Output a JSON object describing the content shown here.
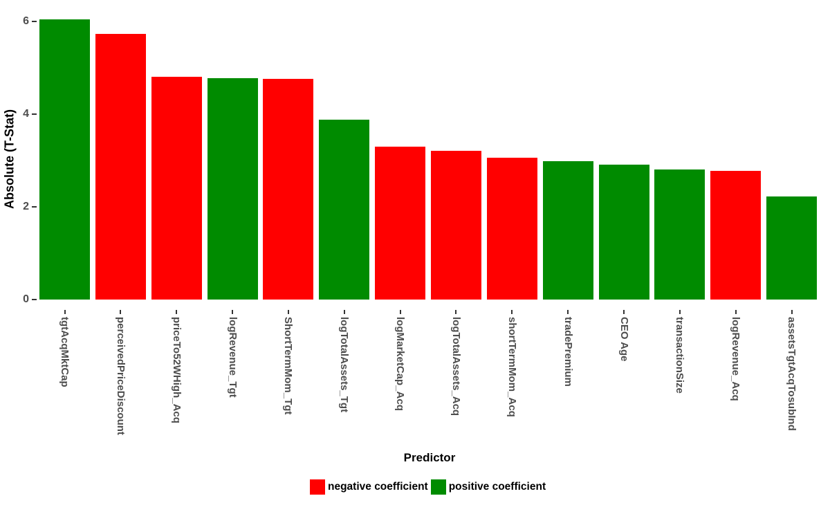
{
  "chart_data": {
    "type": "bar",
    "title": "",
    "xlabel": "Predictor",
    "ylabel": "Absolute (T-Stat)",
    "ylim": [
      0,
      6.4
    ],
    "yticks": [
      0,
      2,
      4,
      6
    ],
    "grid": false,
    "legend_position": "bottom",
    "categories": [
      "tgtAcqMktCap",
      "perceivedPriceDiscount",
      "priceTo52WHigh_Acq",
      "logRevenue_Tgt",
      "ShortTermMom_Tgt",
      "logTotalAssets_Tgt",
      "logMarketCap_Acq",
      "logTotalAssets_Acq",
      "shortTermMom_Acq",
      "tradePremium",
      "CEO Age",
      "transactionSize",
      "logRevenue_Acq",
      "assetsTgtAcqTosubInd"
    ],
    "values": [
      6.05,
      5.73,
      4.81,
      4.78,
      4.76,
      3.88,
      3.3,
      3.21,
      3.06,
      2.98,
      2.91,
      2.81,
      2.77,
      2.23
    ],
    "coefficient_sign": [
      "positive",
      "negative",
      "negative",
      "positive",
      "negative",
      "positive",
      "negative",
      "negative",
      "negative",
      "positive",
      "positive",
      "positive",
      "negative",
      "positive"
    ],
    "colors": {
      "negative": "#FF0000",
      "positive": "#008B00",
      "axis_text": "#4D4D4D",
      "tick_mark": "#333333",
      "title_text": "#000000"
    },
    "legend": [
      {
        "label": "negative coefficient",
        "color": "#FF0000"
      },
      {
        "label": "positive coefficient",
        "color": "#008B00"
      }
    ]
  }
}
